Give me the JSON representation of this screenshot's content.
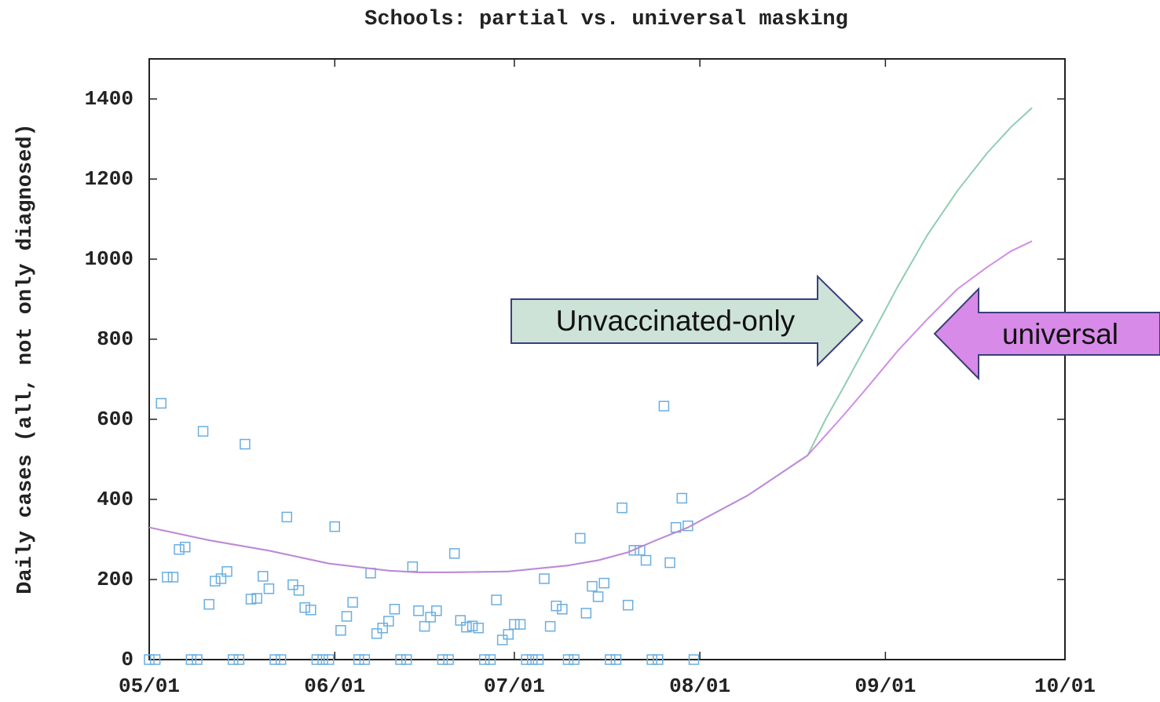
{
  "chart_data": {
    "type": "line",
    "title": "Schools: partial vs. universal masking",
    "y_label": "Daily cases (all, not only diagnosed)",
    "xlim": [
      0,
      153
    ],
    "ylim": [
      0,
      1500
    ],
    "xticks": [
      {
        "value": 0,
        "label": "05/01"
      },
      {
        "value": 31,
        "label": "06/01"
      },
      {
        "value": 61,
        "label": "07/01"
      },
      {
        "value": 92,
        "label": "08/01"
      },
      {
        "value": 123,
        "label": "09/01"
      },
      {
        "value": 153,
        "label": "10/01"
      }
    ],
    "yticks": [
      0,
      200,
      400,
      600,
      800,
      1000,
      1200,
      1400
    ],
    "grid": false,
    "points": {
      "color": "#6aaee0",
      "x": [
        0,
        1,
        2,
        3,
        4,
        5,
        6,
        7,
        8,
        9,
        10,
        11,
        12,
        13,
        14,
        15,
        16,
        17,
        18,
        19,
        20,
        21,
        22,
        23,
        24,
        25,
        26,
        27,
        28,
        29,
        30,
        31,
        32,
        33,
        34,
        35,
        36,
        37,
        38,
        39,
        40,
        41,
        42,
        43,
        44,
        45,
        46,
        47,
        48,
        49,
        50,
        51,
        52,
        53,
        54,
        55,
        56,
        57,
        58,
        59,
        60,
        61,
        62,
        63,
        64,
        65,
        66,
        67,
        68,
        69,
        70,
        71,
        72,
        73,
        74,
        75,
        76,
        77,
        78,
        79,
        80,
        81,
        82,
        83,
        84,
        85,
        86,
        87,
        88,
        89,
        90,
        91
      ],
      "values": [
        0,
        0,
        640,
        206,
        206,
        275,
        281,
        0,
        0,
        570,
        138,
        196,
        202,
        220,
        0,
        0,
        538,
        151,
        153,
        208,
        177,
        0,
        0,
        356,
        187,
        173,
        130,
        124,
        0,
        0,
        0,
        332,
        73,
        108,
        143,
        0,
        0,
        216,
        65,
        79,
        96,
        126,
        0,
        0,
        232,
        122,
        83,
        106,
        122,
        0,
        0,
        265,
        98,
        81,
        84,
        79,
        0,
        0,
        149,
        49,
        63,
        88,
        88,
        0,
        0,
        0,
        202,
        83,
        134,
        126,
        0,
        0,
        303,
        116,
        183,
        157,
        191,
        0,
        0,
        379,
        136,
        273,
        273,
        248,
        0,
        0,
        633,
        242,
        330,
        403,
        334,
        0
      ]
    },
    "series": [
      {
        "name": "Unvaccinated-only",
        "color": "#7ec4a4",
        "x": [
          0,
          10,
          20,
          30,
          40,
          45,
          50,
          60,
          70,
          75,
          80,
          85,
          90,
          95,
          100,
          105,
          110,
          113,
          116,
          120,
          125,
          130,
          135,
          140,
          144,
          147.5
        ],
        "values": [
          330,
          298,
          272,
          240,
          222,
          218,
          218,
          220,
          235,
          248,
          268,
          300,
          330,
          370,
          410,
          460,
          510,
          600,
          680,
          790,
          930,
          1060,
          1170,
          1265,
          1330,
          1378
        ]
      },
      {
        "name": "universal",
        "color": "#c77be0",
        "x": [
          0,
          10,
          20,
          30,
          40,
          45,
          50,
          60,
          70,
          75,
          80,
          85,
          90,
          95,
          100,
          105,
          110,
          113,
          116,
          120,
          125,
          130,
          135,
          140,
          144,
          147.5
        ],
        "values": [
          330,
          298,
          272,
          240,
          222,
          218,
          218,
          220,
          235,
          248,
          268,
          300,
          330,
          370,
          410,
          460,
          510,
          560,
          610,
          680,
          770,
          850,
          925,
          980,
          1020,
          1045
        ]
      }
    ]
  }
}
